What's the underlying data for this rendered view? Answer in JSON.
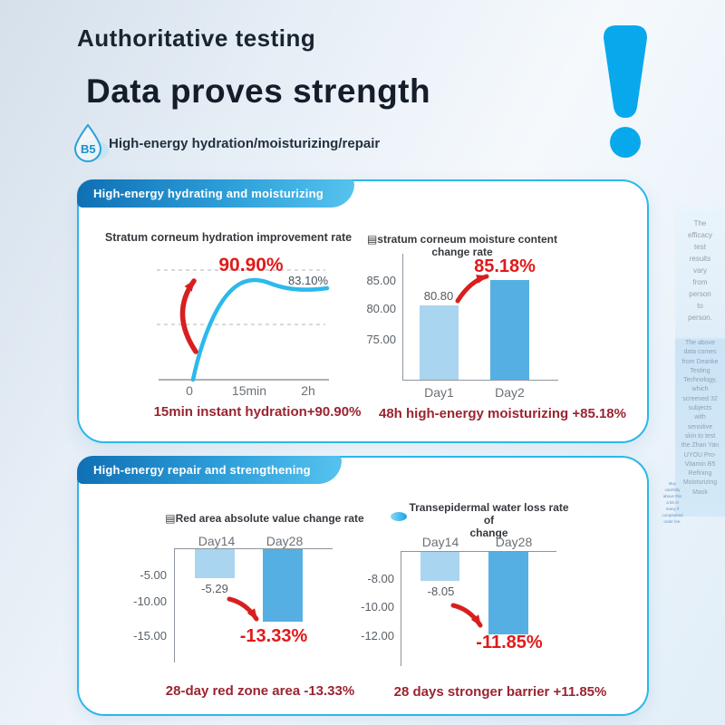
{
  "header": {
    "kicker": "Authoritative testing",
    "title": "Data proves strength",
    "badge": "B5",
    "tagline": "High-energy hydration/moisturizing/repair"
  },
  "sections": [
    {
      "tab": "High-energy hydrating and moisturizing"
    },
    {
      "tab": "High-energy repair and strengthening"
    }
  ],
  "chart_data": [
    {
      "type": "line",
      "title": "Stratum corneum hydration improvement rate",
      "x_ticks": [
        "0",
        "15min",
        "2h"
      ],
      "series": [
        {
          "name": "hydration improvement rate",
          "x": [
            "0",
            "15min",
            "2h"
          ],
          "values": [
            0,
            90.9,
            83.1
          ]
        }
      ],
      "peak_label": "90.90%",
      "end_label": "83.10%",
      "grid": "two dashed horizontal gridlines",
      "line_color": "#2cb9ed",
      "caption": "15min instant hydration+90.90%"
    },
    {
      "type": "bar",
      "title": "▤stratum corneum moisture content change rate",
      "categories": [
        "Day1",
        "Day2"
      ],
      "values": [
        80.8,
        85.18
      ],
      "bar_value_labels": [
        "80.80",
        "85.18%"
      ],
      "yticks": [
        "85.00",
        "80.00",
        "75.00"
      ],
      "ylim": [
        68,
        87
      ],
      "bar_colors": [
        "#a9d5f0",
        "#55afe3"
      ],
      "caption": "48h high-energy moisturizing +85.18%"
    },
    {
      "type": "bar",
      "title": "▤Red area absolute value change rate",
      "categories": [
        "Day14",
        "Day28"
      ],
      "values": [
        -5.29,
        -13.33
      ],
      "bar_value_labels": [
        "-5.29",
        "-13.33%"
      ],
      "yticks": [
        "-5.00",
        "-10.00",
        "-15.00"
      ],
      "ylim": [
        -17,
        0
      ],
      "bar_colors": [
        "#a9d5f0",
        "#55afe3"
      ],
      "caption": "28-day red zone area -13.33%"
    },
    {
      "type": "bar",
      "title": "Transepidermal water loss rate of change",
      "title_lines": [
        "Transepidermal water loss rate of",
        "change"
      ],
      "categories": [
        "Day14",
        "Day28"
      ],
      "values": [
        -8.05,
        -11.85
      ],
      "bar_value_labels": [
        "-8.05",
        "-11.85%"
      ],
      "yticks": [
        "-8.00",
        "-10.00",
        "-12.00"
      ],
      "ylim": [
        -14,
        -6
      ],
      "bar_colors": [
        "#a9d5f0",
        "#55afe3"
      ],
      "caption": "28 days stronger barrier +11.85%"
    }
  ],
  "sidebar": {
    "disclaimer": [
      "The",
      "efficacy",
      "test",
      "results",
      "vary",
      "from",
      "person",
      "to",
      "person."
    ],
    "source": [
      "The above",
      "data comes",
      "from Deanke",
      "Testing",
      "Technology,",
      "which",
      "screened 32",
      "subjects",
      "with",
      "sensitive",
      "skin to test",
      "the Zhan Yan",
      "UYOU Pro-",
      "Vitamin B5",
      "Refining",
      "Moisturizing",
      "Mask"
    ],
    "fine_print": [
      "Buy",
      "carefully",
      "above this",
      "a bit of",
      "many if",
      "complained",
      "order fee."
    ]
  },
  "colors": {
    "accent_blue": "#08a9ec",
    "card_border": "#2bb7ea",
    "bar_light": "#a9d5f0",
    "bar_dark": "#55afe3",
    "highlight_red": "#e01a1a",
    "caption_maroon": "#9b2430"
  }
}
